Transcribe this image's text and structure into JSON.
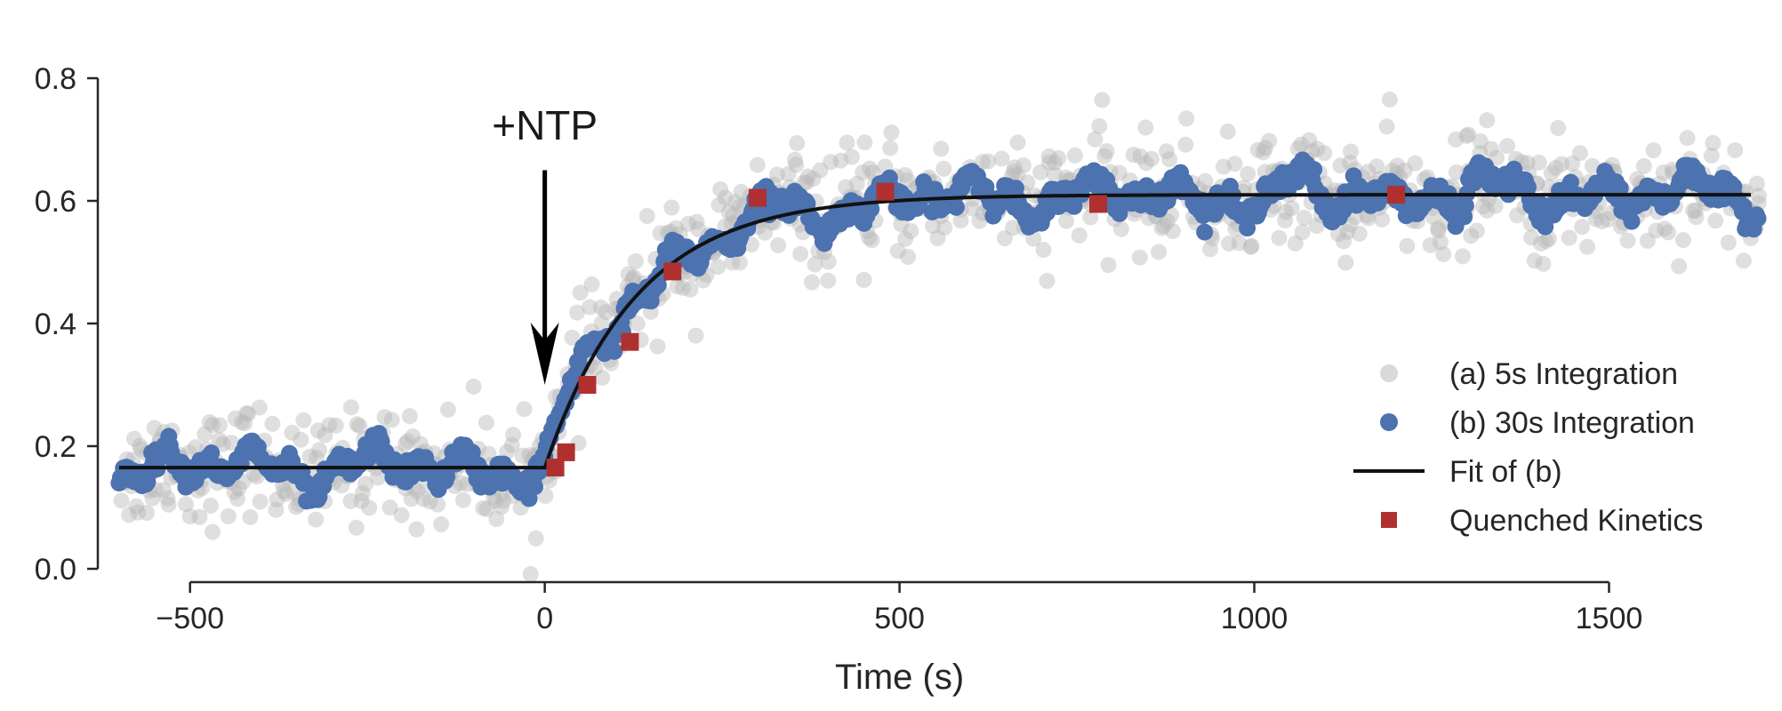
{
  "chart_data": {
    "type": "scatter",
    "title": "",
    "xlabel": "Time (s)",
    "ylabel": "",
    "xlim": [
      -630,
      1720
    ],
    "ylim": [
      0.0,
      0.8
    ],
    "xticks": [
      -500,
      0,
      500,
      1000,
      1500
    ],
    "xtick_labels": [
      "−500",
      "0",
      "500",
      "1000",
      "1500"
    ],
    "yticks": [
      0.0,
      0.2,
      0.4,
      0.6,
      0.8
    ],
    "ytick_labels": [
      "0.0",
      "0.2",
      "0.4",
      "0.6",
      "0.8"
    ],
    "grid": false,
    "legend_position": "lower-right",
    "annotation": {
      "text": "+NTP",
      "x": 0,
      "y_arrow_tip": 0.3,
      "y_arrow_tail": 0.65
    },
    "series": [
      {
        "name": "(a) 5s Integration",
        "kind": "scatter",
        "color": "#b9b9b9",
        "x_range": [
          -600,
          1710
        ],
        "step": 5,
        "noise_sd": 0.045
      },
      {
        "name": "(b) 30s Integration",
        "kind": "scatter",
        "color": "#4c72b0",
        "x_range": [
          -600,
          1710
        ],
        "step": 2,
        "noise_sd": 0.018
      },
      {
        "name": "Fit of (b)",
        "kind": "line",
        "color": "#111111",
        "baseline": 0.165,
        "plateau": 0.61,
        "tau": 130,
        "t0": 0,
        "x_range": [
          -600,
          1700
        ]
      },
      {
        "name": "Quenched Kinetics",
        "kind": "square",
        "color": "#b03030",
        "x": [
          15,
          30,
          60,
          120,
          180,
          300,
          480,
          780,
          1200
        ],
        "y": [
          0.165,
          0.19,
          0.3,
          0.37,
          0.485,
          0.605,
          0.615,
          0.595,
          0.61
        ]
      }
    ]
  }
}
